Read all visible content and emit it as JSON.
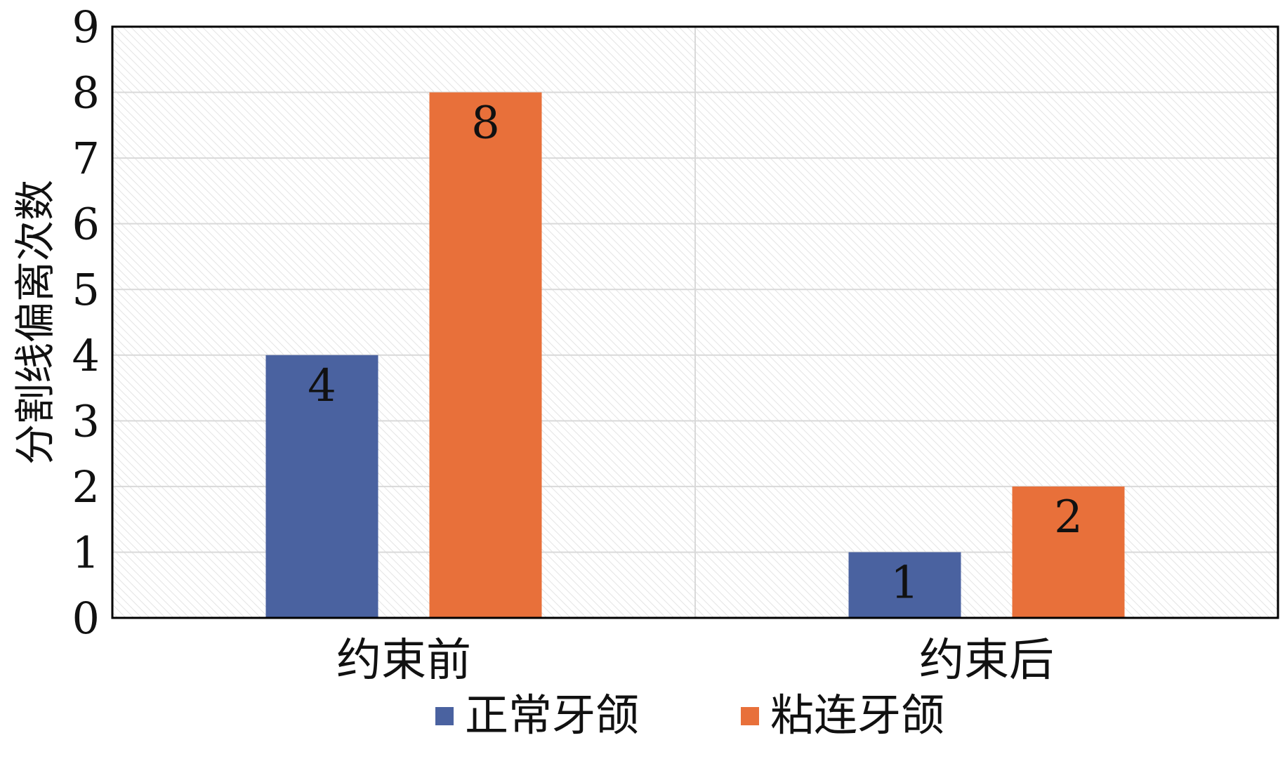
{
  "chart_data": {
    "type": "bar",
    "categories": [
      "约束前",
      "约束后"
    ],
    "series": [
      {
        "name": "正常牙颌",
        "values": [
          4,
          1
        ],
        "color": "#4a62a0"
      },
      {
        "name": "粘连牙颌",
        "values": [
          8,
          2
        ],
        "color": "#e8703a"
      }
    ],
    "ylabel": "分割线偏离次数",
    "xlabel": "",
    "ylim": [
      0,
      9
    ],
    "yticks": [
      0,
      1,
      2,
      3,
      4,
      5,
      6,
      7,
      8,
      9
    ],
    "grid": true,
    "legend_position": "bottom",
    "data_labels": true,
    "plot_background": "hatched-light-gray"
  }
}
